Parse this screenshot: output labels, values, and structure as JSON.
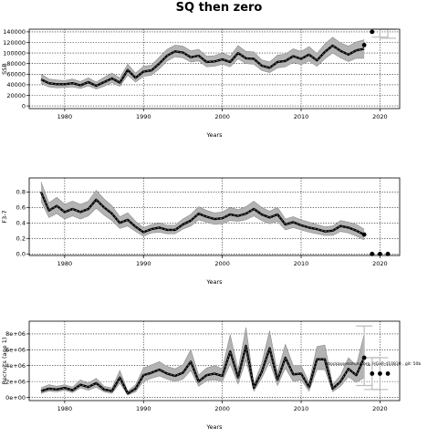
{
  "title": "SQ then zero",
  "annotation": "stockassessment.org, HGaR-d10830 , git: 50b",
  "chart_data": [
    {
      "type": "line",
      "ylabel": "SSB",
      "xlabel": "Years",
      "xlim": [
        1975.5,
        2022.5
      ],
      "ylim": [
        -5000,
        145000
      ],
      "xticks": [
        1980,
        1990,
        2000,
        2010,
        2020
      ],
      "yticks": [
        0,
        20000,
        40000,
        60000,
        80000,
        100000,
        120000,
        140000
      ],
      "ytick_labels": [
        "0",
        "20000",
        "40000",
        "60000",
        "80000",
        "100000",
        "120000",
        "140000"
      ],
      "grid": true,
      "x": [
        1977,
        1978,
        1979,
        1980,
        1981,
        1982,
        1983,
        1984,
        1985,
        1986,
        1987,
        1988,
        1989,
        1990,
        1991,
        1992,
        1993,
        1994,
        1995,
        1996,
        1997,
        1998,
        1999,
        2000,
        2001,
        2002,
        2003,
        2004,
        2005,
        2006,
        2007,
        2008,
        2009,
        2010,
        2011,
        2012,
        2013,
        2014,
        2015,
        2016,
        2017,
        2018
      ],
      "y": [
        50000,
        43000,
        41000,
        41000,
        43000,
        39000,
        45000,
        38000,
        45000,
        52000,
        44000,
        68000,
        53000,
        65000,
        67000,
        80000,
        95000,
        103000,
        101000,
        92000,
        95000,
        83000,
        84000,
        88000,
        83000,
        100000,
        90000,
        89000,
        76000,
        72000,
        83000,
        85000,
        94000,
        89000,
        97000,
        86000,
        102000,
        114000,
        104000,
        97000,
        105000,
        108000
      ],
      "lower": [
        42000,
        36000,
        34000,
        35000,
        36000,
        33000,
        38000,
        32000,
        37000,
        44000,
        37000,
        58000,
        45000,
        56000,
        58000,
        70000,
        85000,
        93000,
        91000,
        83000,
        85000,
        74000,
        75000,
        79000,
        74000,
        89000,
        80000,
        79000,
        67000,
        63000,
        72000,
        74000,
        82000,
        78000,
        85000,
        75000,
        89000,
        100000,
        91000,
        84000,
        90000,
        90000
      ],
      "upper": [
        60000,
        51000,
        49000,
        48000,
        51000,
        46000,
        53000,
        45000,
        54000,
        62000,
        53000,
        79000,
        62000,
        75000,
        77000,
        92000,
        107000,
        115000,
        113000,
        104000,
        107000,
        94000,
        95000,
        100000,
        94000,
        114000,
        103000,
        102000,
        87000,
        83000,
        96000,
        98000,
        108000,
        103000,
        112000,
        99000,
        117000,
        130000,
        119000,
        113000,
        121000,
        125000
      ],
      "forecast_points": {
        "x": [
          2018,
          2019
        ],
        "y": [
          115000,
          140000
        ]
      },
      "forecast_bars": [
        {
          "x": 2020,
          "lower": 130000,
          "upper": 145000
        },
        {
          "x": 2021,
          "lower": 128000,
          "upper": 145000
        }
      ]
    },
    {
      "type": "line",
      "ylabel": "F3-7",
      "xlabel": "Years",
      "xlim": [
        1975.5,
        2022.5
      ],
      "ylim": [
        -0.02,
        0.98
      ],
      "xticks": [
        1980,
        1990,
        2000,
        2010,
        2020
      ],
      "yticks": [
        0.0,
        0.2,
        0.4,
        0.6,
        0.8
      ],
      "ytick_labels": [
        "0.0",
        "0.2",
        "0.4",
        "0.6",
        "0.8"
      ],
      "grid": true,
      "x": [
        1977,
        1978,
        1979,
        1980,
        1981,
        1982,
        1983,
        1984,
        1985,
        1986,
        1987,
        1988,
        1989,
        1990,
        1991,
        1992,
        1993,
        1994,
        1995,
        1996,
        1997,
        1998,
        1999,
        2000,
        2001,
        2002,
        2003,
        2004,
        2005,
        2006,
        2007,
        2008,
        2009,
        2010,
        2011,
        2012,
        2013,
        2014,
        2015,
        2016,
        2017,
        2018
      ],
      "y": [
        0.8,
        0.56,
        0.62,
        0.54,
        0.58,
        0.54,
        0.58,
        0.7,
        0.6,
        0.52,
        0.4,
        0.44,
        0.35,
        0.28,
        0.32,
        0.34,
        0.31,
        0.31,
        0.38,
        0.43,
        0.52,
        0.48,
        0.45,
        0.46,
        0.51,
        0.49,
        0.52,
        0.58,
        0.51,
        0.47,
        0.51,
        0.38,
        0.41,
        0.37,
        0.34,
        0.32,
        0.29,
        0.3,
        0.36,
        0.34,
        0.3,
        0.25
      ],
      "lower": [
        0.68,
        0.47,
        0.52,
        0.45,
        0.49,
        0.45,
        0.49,
        0.59,
        0.5,
        0.43,
        0.33,
        0.36,
        0.29,
        0.23,
        0.27,
        0.28,
        0.26,
        0.26,
        0.32,
        0.36,
        0.44,
        0.41,
        0.38,
        0.39,
        0.43,
        0.42,
        0.44,
        0.49,
        0.43,
        0.39,
        0.42,
        0.31,
        0.34,
        0.31,
        0.28,
        0.26,
        0.24,
        0.24,
        0.29,
        0.27,
        0.23,
        0.18
      ],
      "upper": [
        0.93,
        0.66,
        0.73,
        0.64,
        0.68,
        0.64,
        0.68,
        0.82,
        0.71,
        0.62,
        0.48,
        0.53,
        0.42,
        0.34,
        0.38,
        0.4,
        0.37,
        0.37,
        0.45,
        0.51,
        0.61,
        0.56,
        0.53,
        0.54,
        0.6,
        0.57,
        0.61,
        0.68,
        0.6,
        0.55,
        0.6,
        0.45,
        0.48,
        0.44,
        0.41,
        0.38,
        0.35,
        0.36,
        0.43,
        0.41,
        0.38,
        0.32
      ],
      "forecast_points": {
        "x": [
          2018,
          2019,
          2020,
          2021
        ],
        "y": [
          0.25,
          0.0,
          0.0,
          0.0
        ]
      }
    },
    {
      "type": "line",
      "ylabel": "Recruits (age 1)",
      "xlabel": "Years",
      "xlim": [
        1975.5,
        2022.5
      ],
      "ylim": [
        -400000,
        9600000
      ],
      "xticks": [
        1980,
        1990,
        2000,
        2010,
        2020
      ],
      "yticks": [
        0,
        2000000,
        4000000,
        6000000,
        8000000
      ],
      "ytick_labels": [
        "0e+00",
        "2e+06",
        "4e+06",
        "6e+06",
        "8e+06"
      ],
      "grid": true,
      "x": [
        1977,
        1978,
        1979,
        1980,
        1981,
        1982,
        1983,
        1984,
        1985,
        1986,
        1987,
        1988,
        1989,
        1990,
        1991,
        1992,
        1993,
        1994,
        1995,
        1996,
        1997,
        1998,
        1999,
        2000,
        2001,
        2002,
        2003,
        2004,
        2005,
        2006,
        2007,
        2008,
        2009,
        2010,
        2011,
        2012,
        2013,
        2014,
        2015,
        2016,
        2017,
        2018
      ],
      "y": [
        800000,
        1100000,
        1000000,
        1200000,
        900000,
        1600000,
        1300000,
        1800000,
        1000000,
        800000,
        2500000,
        500000,
        1100000,
        2800000,
        3100000,
        3500000,
        3000000,
        2700000,
        3100000,
        4500000,
        2000000,
        2800000,
        3000000,
        2700000,
        5800000,
        2500000,
        6500000,
        1200000,
        3200000,
        6200000,
        2200000,
        5000000,
        2900000,
        3000000,
        1300000,
        4800000,
        4800000,
        1100000,
        2000000,
        3600000,
        2800000,
        5000000
      ],
      "lower": [
        500000,
        800000,
        700000,
        900000,
        600000,
        1200000,
        900000,
        1300000,
        700000,
        500000,
        1800000,
        300000,
        700000,
        2000000,
        2400000,
        2700000,
        2300000,
        2000000,
        2300000,
        3400000,
        1400000,
        2100000,
        2200000,
        2000000,
        4200000,
        1700000,
        4700000,
        800000,
        2400000,
        4500000,
        1500000,
        3700000,
        2000000,
        2200000,
        800000,
        3500000,
        3500000,
        700000,
        1400000,
        2600000,
        1900000,
        2500000
      ],
      "upper": [
        1200000,
        1600000,
        1400000,
        1600000,
        1300000,
        2200000,
        1800000,
        2400000,
        1400000,
        1200000,
        3400000,
        800000,
        1600000,
        3700000,
        4100000,
        4500000,
        3900000,
        3600000,
        4100000,
        6000000,
        2800000,
        3700000,
        4000000,
        3600000,
        7900000,
        3500000,
        8800000,
        1700000,
        4300000,
        8400000,
        3100000,
        6700000,
        4000000,
        4000000,
        1900000,
        6400000,
        6600000,
        1600000,
        2800000,
        5000000,
        4000000,
        8000000
      ],
      "forecast_points": {
        "x": [
          2018,
          2019,
          2020,
          2021
        ],
        "y": [
          5000000,
          3000000,
          3000000,
          3000000
        ]
      },
      "forecast_bars": [
        {
          "x": 2018,
          "lower": 1500000,
          "upper": 9000000
        },
        {
          "x": 2019,
          "lower": 1000000,
          "upper": 5000000
        },
        {
          "x": 2020,
          "lower": 1000000,
          "upper": 5000000
        }
      ]
    }
  ]
}
